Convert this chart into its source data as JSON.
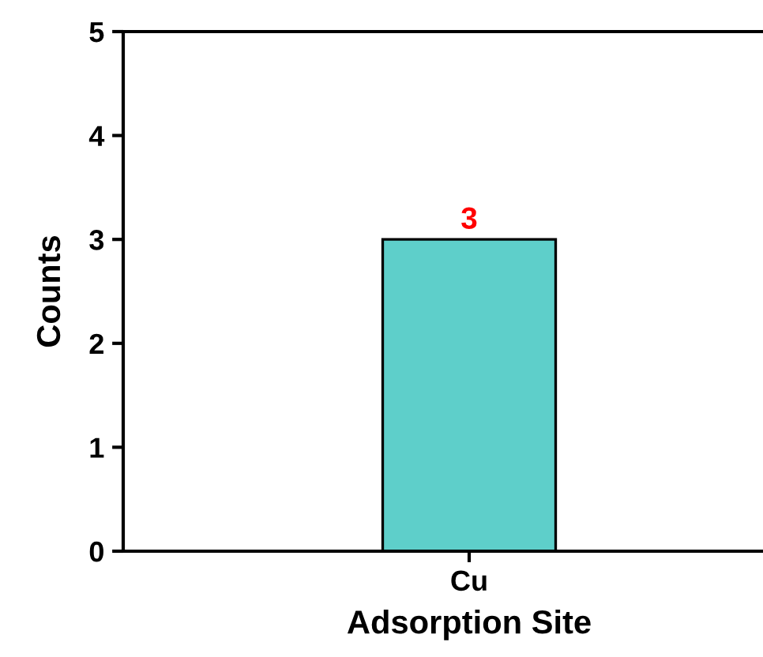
{
  "chart_data": {
    "type": "bar",
    "xlabel": "Adsorption Site",
    "ylabel": "Counts",
    "categories": [
      "Cu"
    ],
    "values": [
      3
    ],
    "color": "#5ecfca",
    "ylim": [
      0,
      5
    ],
    "yticks": [
      0,
      1,
      2,
      3,
      4,
      5
    ],
    "grid": false,
    "data_labels": true
  }
}
